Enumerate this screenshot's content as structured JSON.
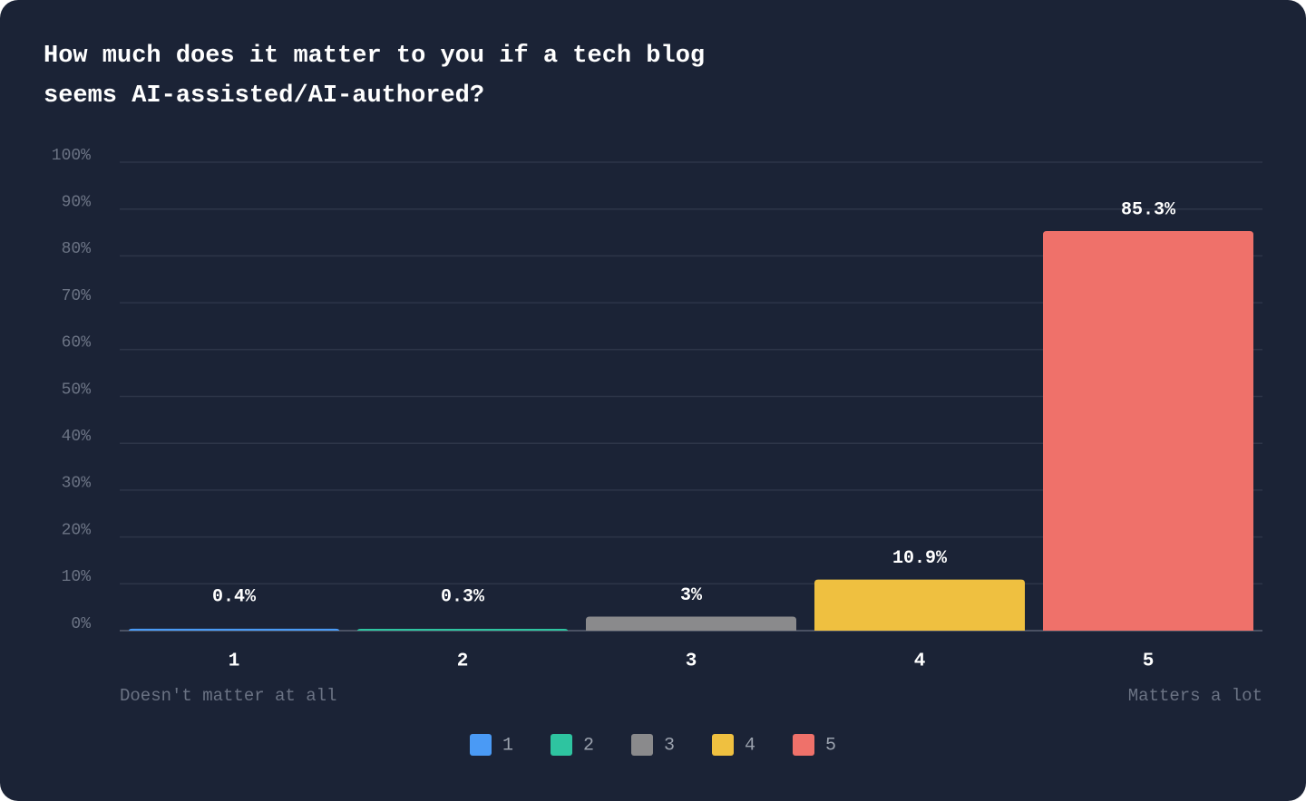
{
  "chart_data": {
    "type": "bar",
    "title": "How much does it matter to you if a tech blog seems AI-assisted/AI-authored?",
    "categories": [
      "1",
      "2",
      "3",
      "4",
      "5"
    ],
    "values": [
      0.4,
      0.3,
      3,
      10.9,
      85.3
    ],
    "value_labels": [
      "0.4%",
      "0.3%",
      "3%",
      "10.9%",
      "85.3%"
    ],
    "colors": [
      "#4a9af5",
      "#2ec4a0",
      "#8a8a8c",
      "#efc040",
      "#ef716a"
    ],
    "low_label": "Doesn't matter at all",
    "high_label": "Matters a lot",
    "ylim": [
      0,
      100
    ],
    "yticks": [
      {
        "value": 0,
        "label": "0%"
      },
      {
        "value": 10,
        "label": "10%"
      },
      {
        "value": 20,
        "label": "20%"
      },
      {
        "value": 30,
        "label": "30%"
      },
      {
        "value": 40,
        "label": "40%"
      },
      {
        "value": 50,
        "label": "50%"
      },
      {
        "value": 60,
        "label": "60%"
      },
      {
        "value": 70,
        "label": "70%"
      },
      {
        "value": 80,
        "label": "80%"
      },
      {
        "value": 90,
        "label": "90%"
      },
      {
        "value": 100,
        "label": "100%"
      }
    ],
    "grid": true
  }
}
